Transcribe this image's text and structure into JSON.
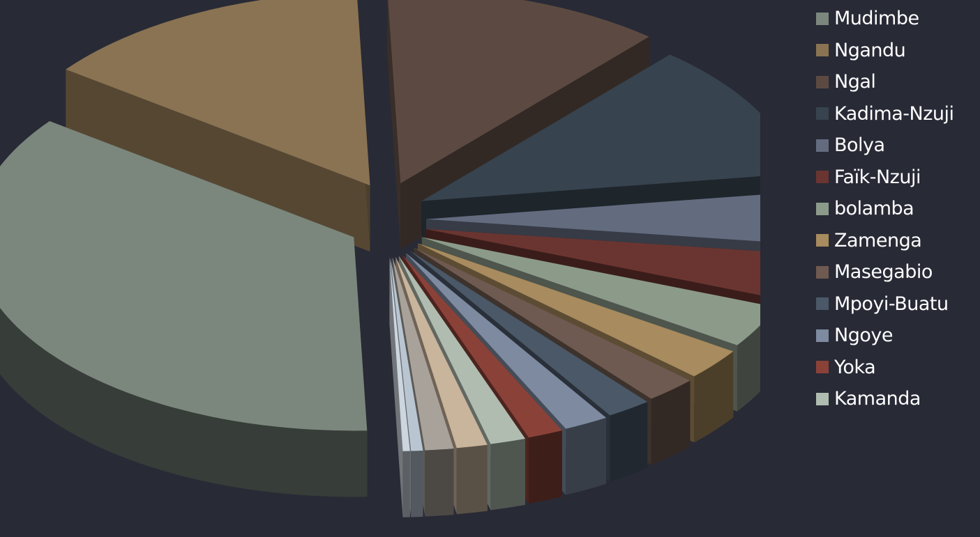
{
  "chart_data": {
    "type": "pie",
    "variant": "exploded-3d",
    "title": "",
    "legend_position": "right",
    "categories": [
      "Mudimbe",
      "Ngandu",
      "Ngal",
      "Kadima-Nzuji",
      "Bolya",
      "Faïk-Nzuji",
      "bolamba",
      "Zamenga",
      "Masegabio",
      "Mpoyi-Buatu",
      "Ngoye",
      "Yoka",
      "Kamanda",
      "",
      "",
      "",
      ""
    ],
    "values": [
      35.5,
      14.1,
      11.8,
      11.3,
      4.3,
      3.8,
      3.5,
      2.6,
      2.2,
      1.9,
      1.9,
      1.5,
      1.5,
      1.3,
      1.2,
      0.5,
      0.3
    ],
    "colors": [
      "#7b877c",
      "#8a7352",
      "#5c4a42",
      "#37434e",
      "#636b7f",
      "#6a3530",
      "#8c9a8a",
      "#a88b5e",
      "#6e5a50",
      "#4a5868",
      "#7d8aa0",
      "#8a4238",
      "#b0bcb0",
      "#c9b49c",
      "#a8a29a",
      "#b9c6d2",
      "#cdd5de"
    ]
  },
  "legend": {
    "items": [
      {
        "label": "Mudimbe",
        "color": "#7b877c"
      },
      {
        "label": "Ngandu",
        "color": "#8a7352"
      },
      {
        "label": "Ngal",
        "color": "#5c4a42"
      },
      {
        "label": "Kadima-Nzuji",
        "color": "#37434e"
      },
      {
        "label": "Bolya",
        "color": "#636b7f"
      },
      {
        "label": "Faïk-Nzuji",
        "color": "#6a3530"
      },
      {
        "label": "bolamba",
        "color": "#8c9a8a"
      },
      {
        "label": "Zamenga",
        "color": "#a88b5e"
      },
      {
        "label": "Masegabio",
        "color": "#6e5a50"
      },
      {
        "label": "Mpoyi-Buatu",
        "color": "#4a5868"
      },
      {
        "label": "Ngoye",
        "color": "#7d8aa0"
      },
      {
        "label": "Yoka",
        "color": "#8a4238"
      },
      {
        "label": "Kamanda",
        "color": "#b0bcb0"
      }
    ]
  },
  "colors": {
    "background": "#282a36",
    "legend_text": "#ffffff"
  }
}
